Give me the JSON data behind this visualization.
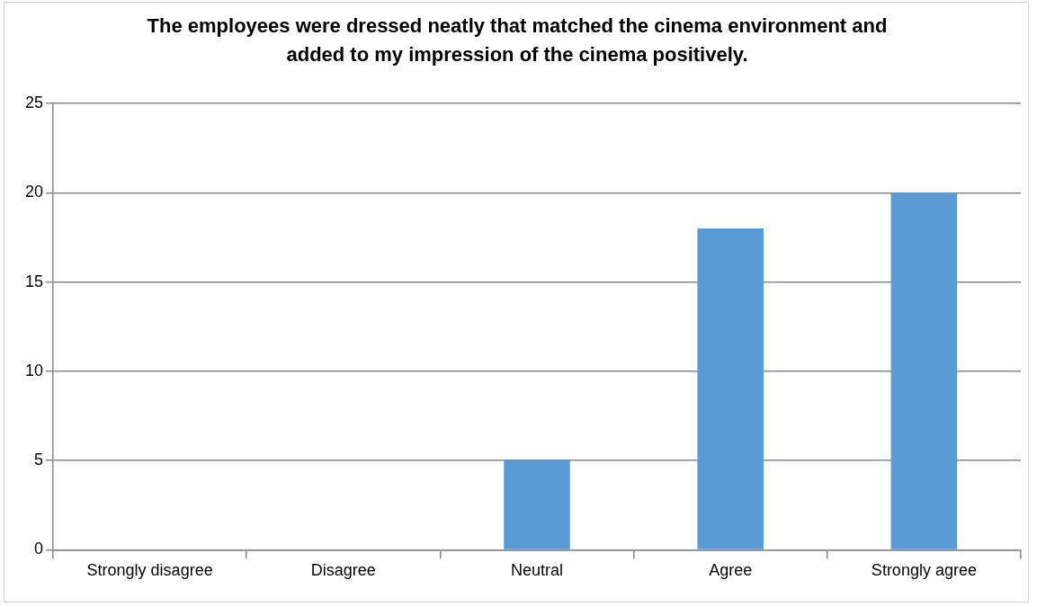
{
  "chart_data": {
    "type": "bar",
    "title": "The employees were dressed neatly that matched the cinema environment and added to my impression of the cinema positively.",
    "categories": [
      "Strongly disagree",
      "Disagree",
      "Neutral",
      "Agree",
      "Strongly agree"
    ],
    "values": [
      0,
      0,
      5,
      18,
      20
    ],
    "color": "#5b9bd5",
    "ylim": [
      0,
      25
    ],
    "yticks": [
      0,
      5,
      10,
      15,
      20,
      25
    ],
    "grid": "y"
  }
}
